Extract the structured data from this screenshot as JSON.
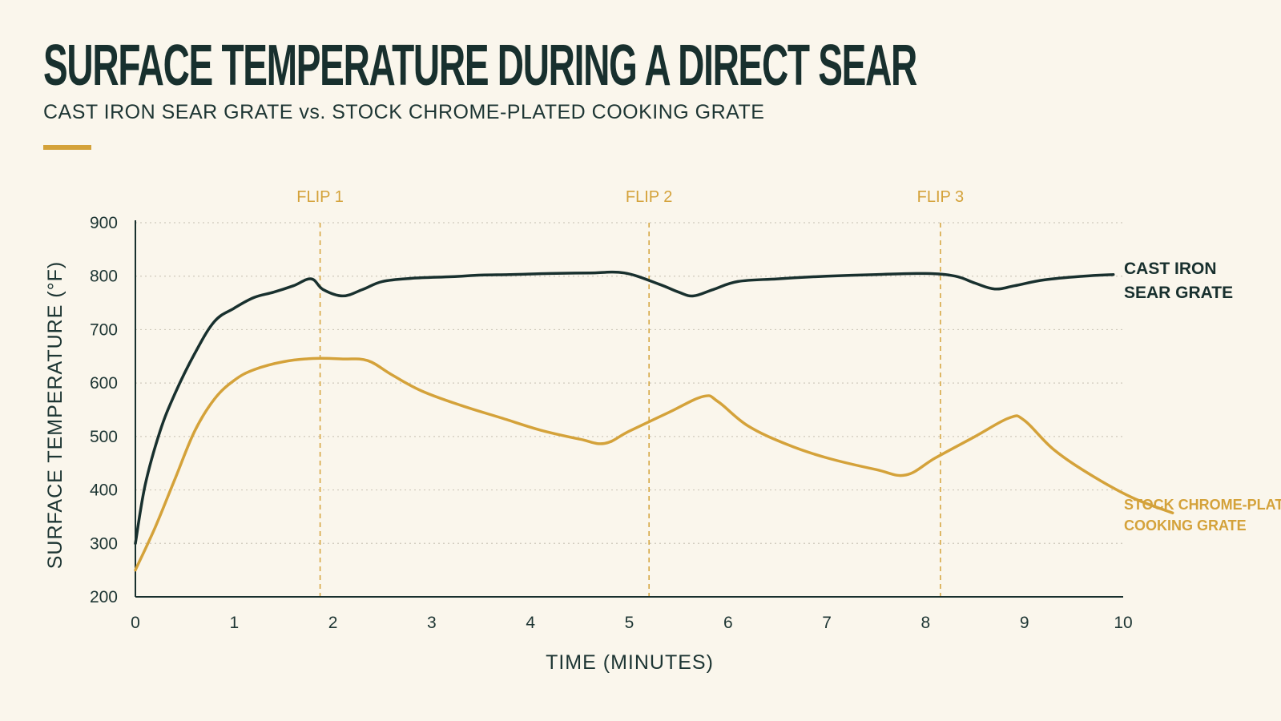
{
  "colors": {
    "background": "#faf6ec",
    "dark": "#18302e",
    "gold": "#d4a23a",
    "grid": "#cfc9bb",
    "accent_bar": "#d4a23a"
  },
  "chart_data": {
    "type": "line",
    "title": "SURFACE TEMPERATURE DURING A DIRECT SEAR",
    "subtitle": "CAST IRON SEAR GRATE vs. STOCK CHROME-PLATED COOKING GRATE",
    "xlabel": "TIME (MINUTES)",
    "ylabel": "SURFACE TEMPERATURE (°F)",
    "xlim": [
      0,
      10
    ],
    "ylim": [
      200,
      900
    ],
    "x_ticks": [
      "0",
      "1",
      "2",
      "3",
      "4",
      "5",
      "6",
      "7",
      "8",
      "9",
      "10"
    ],
    "y_ticks": [
      "200",
      "300",
      "400",
      "500",
      "600",
      "700",
      "800",
      "900"
    ],
    "grid": "horizontal dotted",
    "legend": "right, inline at line ends",
    "annotations": [
      {
        "label": "FLIP 1",
        "x": 1.87
      },
      {
        "label": "FLIP 2",
        "x": 5.2
      },
      {
        "label": "FLIP 3",
        "x": 8.15
      }
    ],
    "series": [
      {
        "name": "CAST IRON SEAR GRATE",
        "label_lines": [
          "CAST IRON",
          "SEAR GRATE"
        ],
        "color": "#18302e",
        "points": [
          [
            0,
            300
          ],
          [
            0.1,
            410
          ],
          [
            0.25,
            510
          ],
          [
            0.4,
            580
          ],
          [
            0.6,
            655
          ],
          [
            0.8,
            715
          ],
          [
            1.0,
            740
          ],
          [
            1.2,
            760
          ],
          [
            1.4,
            770
          ],
          [
            1.6,
            782
          ],
          [
            1.78,
            795
          ],
          [
            1.9,
            775
          ],
          [
            2.1,
            763
          ],
          [
            2.3,
            775
          ],
          [
            2.5,
            790
          ],
          [
            2.8,
            796
          ],
          [
            3.2,
            799
          ],
          [
            3.5,
            802
          ],
          [
            3.8,
            803
          ],
          [
            4.2,
            805
          ],
          [
            4.6,
            806
          ],
          [
            4.95,
            806
          ],
          [
            5.3,
            785
          ],
          [
            5.5,
            770
          ],
          [
            5.65,
            763
          ],
          [
            5.85,
            775
          ],
          [
            6.1,
            790
          ],
          [
            6.5,
            795
          ],
          [
            7.0,
            800
          ],
          [
            7.5,
            803
          ],
          [
            8.0,
            805
          ],
          [
            8.3,
            800
          ],
          [
            8.5,
            787
          ],
          [
            8.7,
            776
          ],
          [
            8.9,
            782
          ],
          [
            9.2,
            793
          ],
          [
            9.6,
            800
          ],
          [
            9.9,
            803
          ]
        ]
      },
      {
        "name": "STOCK CHROME-PLATED COOKING GRATE",
        "label_lines": [
          "STOCK CHROME-PLATED",
          "COOKING GRATE"
        ],
        "color": "#d4a23a",
        "points": [
          [
            0,
            250
          ],
          [
            0.2,
            330
          ],
          [
            0.4,
            420
          ],
          [
            0.6,
            510
          ],
          [
            0.8,
            570
          ],
          [
            1.0,
            605
          ],
          [
            1.2,
            625
          ],
          [
            1.5,
            640
          ],
          [
            1.8,
            646
          ],
          [
            2.1,
            645
          ],
          [
            2.35,
            642
          ],
          [
            2.6,
            615
          ],
          [
            2.9,
            585
          ],
          [
            3.3,
            558
          ],
          [
            3.7,
            535
          ],
          [
            4.1,
            512
          ],
          [
            4.5,
            495
          ],
          [
            4.75,
            487
          ],
          [
            5.0,
            510
          ],
          [
            5.4,
            545
          ],
          [
            5.75,
            575
          ],
          [
            5.9,
            565
          ],
          [
            6.2,
            520
          ],
          [
            6.6,
            485
          ],
          [
            7.0,
            460
          ],
          [
            7.5,
            438
          ],
          [
            7.8,
            428
          ],
          [
            8.1,
            460
          ],
          [
            8.5,
            500
          ],
          [
            8.85,
            535
          ],
          [
            9.0,
            530
          ],
          [
            9.3,
            475
          ],
          [
            9.7,
            425
          ],
          [
            10.1,
            385
          ],
          [
            10.5,
            357
          ]
        ]
      }
    ]
  }
}
